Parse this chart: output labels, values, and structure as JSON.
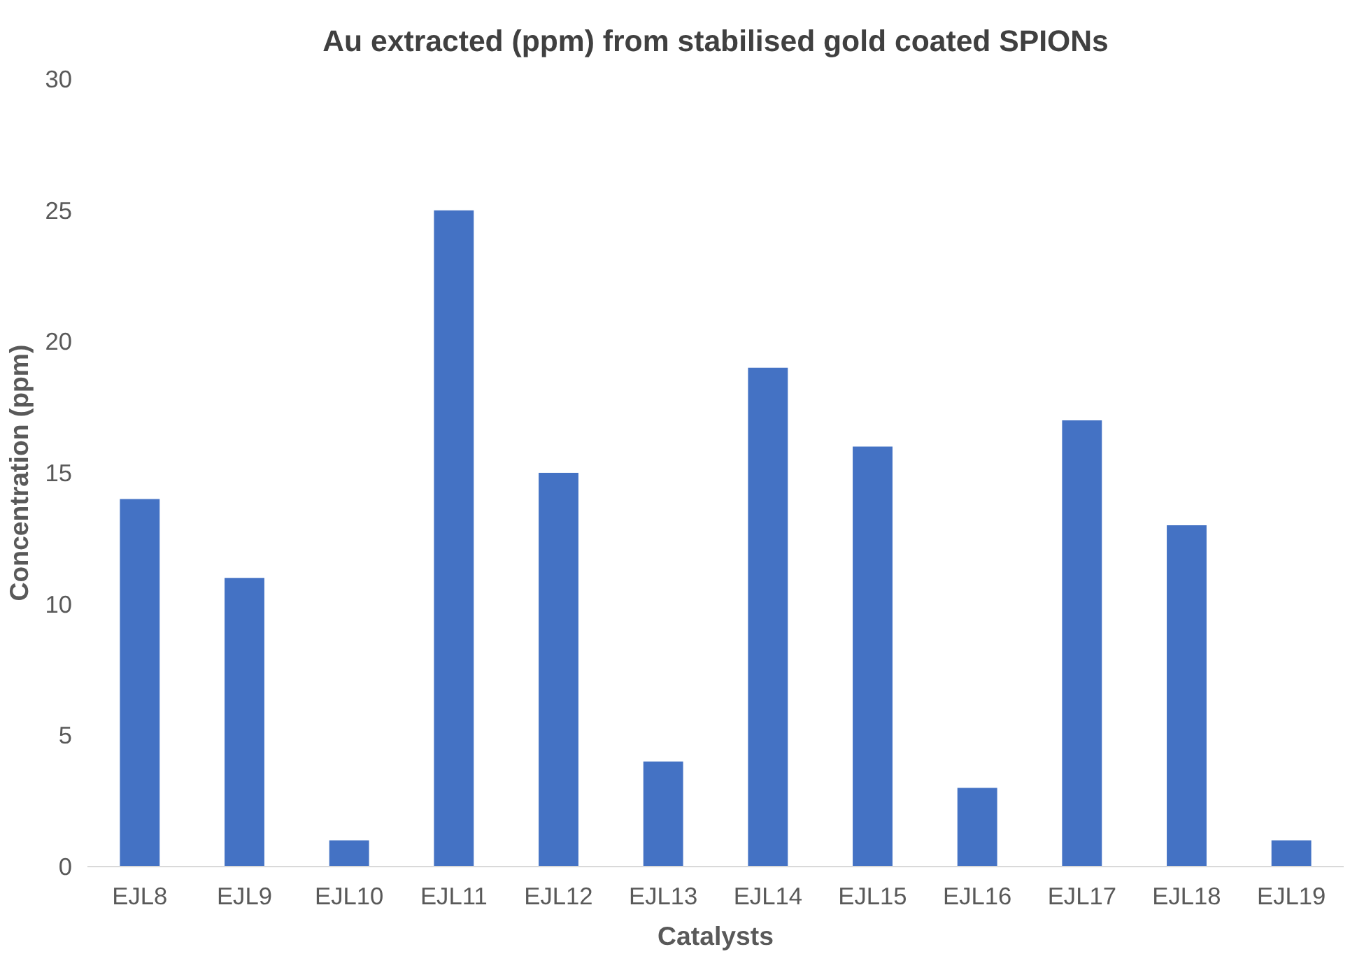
{
  "chart_data": {
    "type": "bar",
    "title": "Au extracted (ppm) from stabilised gold coated SPIONs",
    "xlabel": "Catalysts",
    "ylabel": "Concentration (ppm)",
    "categories": [
      "EJL8",
      "EJL9",
      "EJL10",
      "EJL11",
      "EJL12",
      "EJL13",
      "EJL14",
      "EJL15",
      "EJL16",
      "EJL17",
      "EJL18",
      "EJL19"
    ],
    "values": [
      14,
      11,
      1,
      25,
      15,
      4,
      19,
      16,
      3,
      17,
      13,
      1
    ],
    "color": "#4472c4",
    "ylim": [
      0,
      30
    ],
    "yticks": [
      0,
      5,
      10,
      15,
      20,
      25,
      30
    ],
    "grid": false
  }
}
